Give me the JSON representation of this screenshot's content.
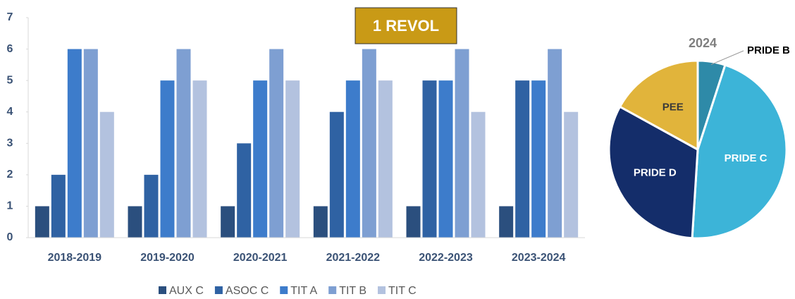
{
  "chart_data": [
    {
      "type": "bar",
      "title": "1 REVOL",
      "categories": [
        "2018-2019",
        "2019-2020",
        "2020-2021",
        "2021-2022",
        "2022-2023",
        "2023-2024"
      ],
      "series": [
        {
          "name": "AUX C",
          "color": "#2b4f7e",
          "values": [
            1,
            1,
            1,
            1,
            1,
            1
          ]
        },
        {
          "name": "ASOC C",
          "color": "#2f62a3",
          "values": [
            2,
            2,
            3,
            4,
            5,
            5
          ]
        },
        {
          "name": "TIT A",
          "color": "#3d7ccb",
          "values": [
            6,
            5,
            5,
            5,
            5,
            5
          ]
        },
        {
          "name": "TIT B",
          "color": "#7e9fd2",
          "values": [
            6,
            6,
            6,
            6,
            6,
            6
          ]
        },
        {
          "name": "TIT C",
          "color": "#b3c2df",
          "values": [
            4,
            5,
            5,
            5,
            4,
            4
          ]
        }
      ],
      "ylim": [
        0,
        7
      ],
      "yticks": [
        0,
        1,
        2,
        3,
        4,
        5,
        6,
        7
      ],
      "legend": "bottom"
    },
    {
      "type": "pie",
      "title": "2024",
      "categories": [
        "PRIDE B",
        "PRIDE C",
        "PRIDE D",
        "PEE"
      ],
      "values": [
        5,
        46,
        32,
        17
      ],
      "colors": [
        "#2e8aa8",
        "#3cb4d8",
        "#142d6a",
        "#e1b43b"
      ]
    }
  ]
}
